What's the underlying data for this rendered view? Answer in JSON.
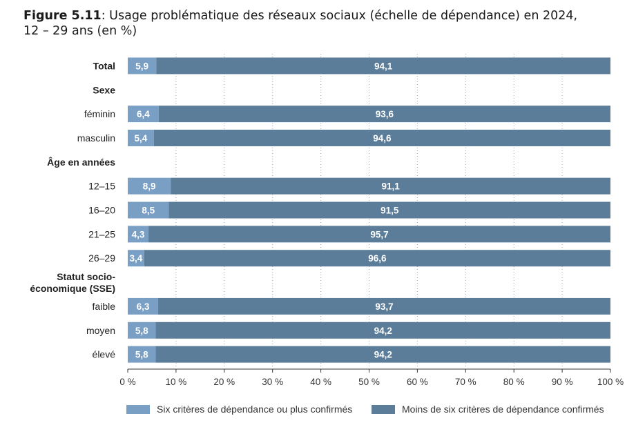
{
  "title": {
    "prefix": "Figure 5.11",
    "text": ": Usage problématique des réseaux sociaux (échelle de dépendance) en 2024,",
    "line2": "12 – 29 ans (en %)"
  },
  "colors": {
    "light": "#7a9fc4",
    "dark": "#5b7d9a",
    "grid": "#9aa8b4",
    "axis": "#333333"
  },
  "chart_data": {
    "type": "bar",
    "orientation": "horizontal",
    "stacked": true,
    "xlim": [
      0,
      100
    ],
    "x_ticks": [
      "0 %",
      "10 %",
      "20 %",
      "30 %",
      "40 %",
      "50 %",
      "60 %",
      "70 %",
      "80 %",
      "90 %",
      "100 %"
    ],
    "legend_position": "bottom",
    "series": [
      {
        "name": "Six critères de dépendance ou plus confirmés",
        "color": "#7a9fc4"
      },
      {
        "name": "Moins de six critères de dépendance confirmés",
        "color": "#5b7d9a"
      }
    ],
    "rows": [
      {
        "label": "Total",
        "bold": true,
        "values": [
          5.9,
          94.1
        ],
        "value_labels": [
          "5,9",
          "94,1"
        ]
      },
      {
        "label": "Sexe",
        "bold": true,
        "header": true
      },
      {
        "label": "féminin",
        "values": [
          6.4,
          93.6
        ],
        "value_labels": [
          "6,4",
          "93,6"
        ]
      },
      {
        "label": "masculin",
        "values": [
          5.4,
          94.6
        ],
        "value_labels": [
          "5,4",
          "94,6"
        ]
      },
      {
        "label": "Âge en années",
        "bold": true,
        "header": true
      },
      {
        "label": "12–15",
        "values": [
          8.9,
          91.1
        ],
        "value_labels": [
          "8,9",
          "91,1"
        ]
      },
      {
        "label": "16–20",
        "values": [
          8.5,
          91.5
        ],
        "value_labels": [
          "8,5",
          "91,5"
        ]
      },
      {
        "label": "21–25",
        "values": [
          4.3,
          95.7
        ],
        "value_labels": [
          "4,3",
          "95,7"
        ]
      },
      {
        "label": "26–29",
        "values": [
          3.4,
          96.6
        ],
        "value_labels": [
          "3,4",
          "96,6"
        ]
      },
      {
        "label": "Statut socio-|économique (SSE)",
        "bold": true,
        "header": true
      },
      {
        "label": "faible",
        "values": [
          6.3,
          93.7
        ],
        "value_labels": [
          "6,3",
          "93,7"
        ]
      },
      {
        "label": "moyen",
        "values": [
          5.8,
          94.2
        ],
        "value_labels": [
          "5,8",
          "94,2"
        ]
      },
      {
        "label": "élevé",
        "values": [
          5.8,
          94.2
        ],
        "value_labels": [
          "5,8",
          "94,2"
        ]
      }
    ]
  }
}
